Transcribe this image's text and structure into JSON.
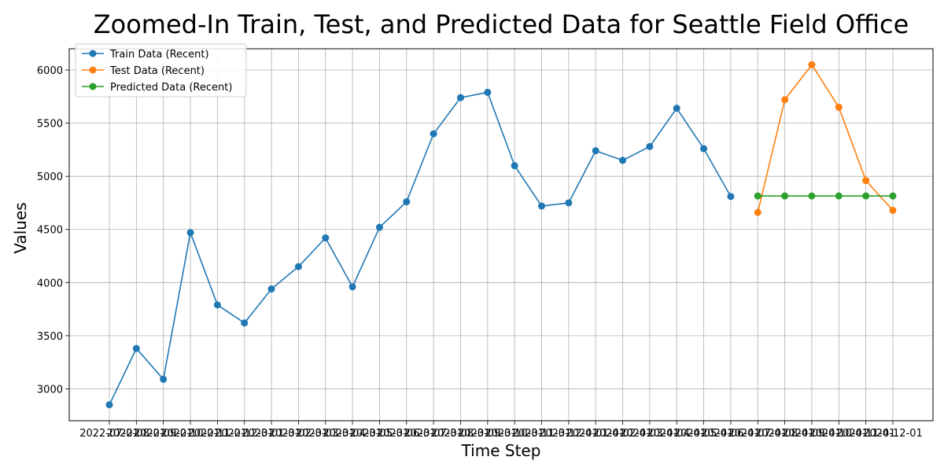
{
  "chart_data": {
    "type": "line",
    "title": "Zoomed-In Train, Test, and Predicted Data for Seattle Field Office",
    "xlabel": "Time Step",
    "ylabel": "Values",
    "ylim": [
      2700,
      6200
    ],
    "yticks": [
      3000,
      3500,
      4000,
      4500,
      5000,
      5500,
      6000
    ],
    "grid": true,
    "legend_position": "upper-left",
    "categories": [
      "2022-07-01",
      "2022-08-01",
      "2022-09-01",
      "2022-10-01",
      "2022-11-01",
      "2022-12-01",
      "2023-01-01",
      "2023-02-01",
      "2023-03-01",
      "2023-04-01",
      "2023-05-01",
      "2023-06-01",
      "2023-07-01",
      "2023-08-01",
      "2023-09-01",
      "2023-10-01",
      "2023-11-01",
      "2023-12-01",
      "2024-01-01",
      "2024-02-01",
      "2024-03-01",
      "2024-04-01",
      "2024-05-01",
      "2024-06-01",
      "2024-07-01",
      "2024-08-01",
      "2024-09-01",
      "2024-10-01",
      "2024-11-01",
      "2024-12-01"
    ],
    "series": [
      {
        "name": "Train Data (Recent)",
        "color": "#1f77b4",
        "x": [
          "2022-07-01",
          "2022-08-01",
          "2022-09-01",
          "2022-10-01",
          "2022-11-01",
          "2022-12-01",
          "2023-01-01",
          "2023-02-01",
          "2023-03-01",
          "2023-04-01",
          "2023-05-01",
          "2023-06-01",
          "2023-07-01",
          "2023-08-01",
          "2023-09-01",
          "2023-10-01",
          "2023-11-01",
          "2023-12-01",
          "2024-01-01",
          "2024-02-01",
          "2024-03-01",
          "2024-04-01",
          "2024-05-01",
          "2024-06-01"
        ],
        "values": [
          2850,
          3380,
          3090,
          4470,
          3790,
          3620,
          3940,
          4150,
          4420,
          3960,
          4520,
          4760,
          5400,
          5740,
          5790,
          5100,
          4720,
          4750,
          5240,
          5150,
          5280,
          5640,
          5260,
          4810
        ]
      },
      {
        "name": "Test Data (Recent)",
        "color": "#ff7f0e",
        "x": [
          "2024-07-01",
          "2024-08-01",
          "2024-09-01",
          "2024-10-01",
          "2024-11-01",
          "2024-12-01"
        ],
        "values": [
          4660,
          5720,
          6050,
          5650,
          4960,
          4680
        ]
      },
      {
        "name": "Predicted Data (Recent)",
        "color": "#2ca02c",
        "x": [
          "2024-07-01",
          "2024-08-01",
          "2024-09-01",
          "2024-10-01",
          "2024-11-01",
          "2024-12-01"
        ],
        "values": [
          4815,
          4815,
          4815,
          4815,
          4815,
          4815
        ]
      }
    ]
  }
}
